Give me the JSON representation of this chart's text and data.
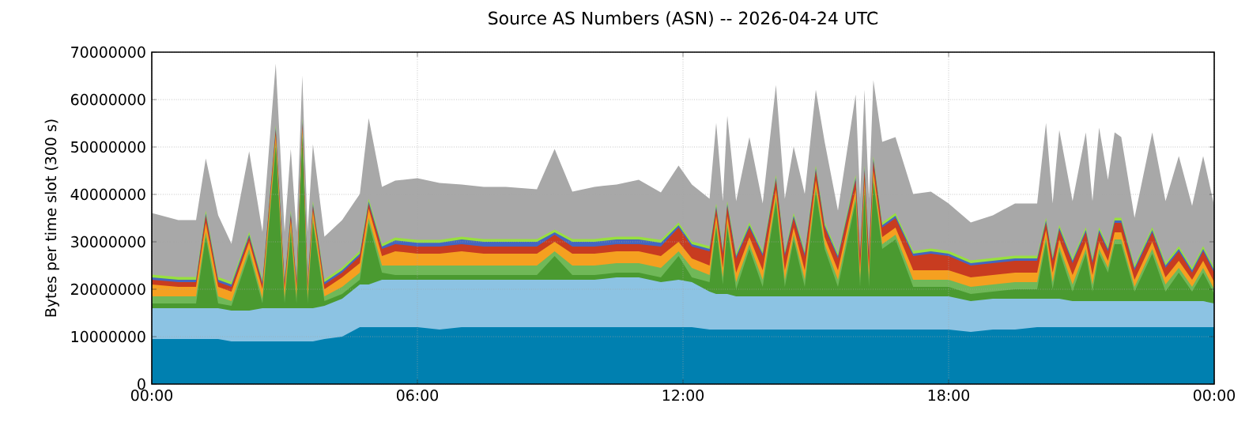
{
  "chart_data": {
    "type": "area",
    "stacked": true,
    "title": "Source AS Numbers (ASN) -- 2026-04-24 UTC",
    "ylabel": "Bytes per time slot (300 s)",
    "x": [
      0,
      0.6,
      1,
      1.22,
      1.5,
      1.8,
      2.2,
      2.5,
      2.8,
      3,
      3.14,
      3.27,
      3.4,
      3.52,
      3.64,
      3.9,
      4.3,
      4.7,
      4.9,
      5.2,
      5.5,
      6,
      6.5,
      7,
      7.5,
      8,
      8.7,
      9.1,
      9.5,
      10,
      10.5,
      11,
      11.5,
      11.9,
      12.2,
      12.6,
      12.75,
      12.9,
      13,
      13.2,
      13.5,
      13.8,
      14.1,
      14.3,
      14.5,
      14.75,
      15,
      15.2,
      15.5,
      15.9,
      16,
      16.1,
      16.2,
      16.3,
      16.5,
      16.8,
      17.2,
      17.6,
      18,
      18.5,
      19,
      19.5,
      20,
      20.2,
      20.35,
      20.5,
      20.8,
      21.1,
      21.25,
      21.4,
      21.6,
      21.75,
      21.9,
      22.2,
      22.6,
      22.9,
      23.2,
      23.5,
      23.75,
      24
    ],
    "xlim": [
      0,
      24
    ],
    "xticks": [
      {
        "value": 0,
        "label": "00:00"
      },
      {
        "value": 6,
        "label": "06:00"
      },
      {
        "value": 12,
        "label": "12:00"
      },
      {
        "value": 18,
        "label": "18:00"
      },
      {
        "value": 24,
        "label": "00:00"
      }
    ],
    "ylim": [
      0,
      70000000
    ],
    "yticks": [
      0,
      10000000,
      20000000,
      30000000,
      40000000,
      50000000,
      60000000,
      70000000
    ],
    "grid": true,
    "series": [
      {
        "color": "#0080b0",
        "values": [
          9500000,
          9500000,
          9500000,
          9500000,
          9500000,
          9000000,
          9000000,
          9000000,
          9000000,
          9000000,
          9000000,
          9000000,
          9000000,
          9000000,
          9000000,
          9500000,
          10000000,
          12000000,
          12000000,
          12000000,
          12000000,
          12000000,
          11500000,
          12000000,
          12000000,
          12000000,
          12000000,
          12000000,
          12000000,
          12000000,
          12000000,
          12000000,
          12000000,
          12000000,
          12000000,
          11500000,
          11500000,
          11500000,
          11500000,
          11500000,
          11500000,
          11500000,
          11500000,
          11500000,
          11500000,
          11500000,
          11500000,
          11500000,
          11500000,
          11500000,
          11500000,
          11500000,
          11500000,
          11500000,
          11500000,
          11500000,
          11500000,
          11500000,
          11500000,
          11000000,
          11500000,
          11500000,
          12000000,
          12000000,
          12000000,
          12000000,
          12000000,
          12000000,
          12000000,
          12000000,
          12000000,
          12000000,
          12000000,
          12000000,
          12000000,
          12000000,
          12000000,
          12000000,
          12000000,
          12000000
        ]
      },
      {
        "color": "#8cc3e3",
        "values": [
          6500000,
          6500000,
          6500000,
          6500000,
          6500000,
          6500000,
          6500000,
          7000000,
          7000000,
          7000000,
          7000000,
          7000000,
          7000000,
          7000000,
          7000000,
          7000000,
          8000000,
          9000000,
          9000000,
          10000000,
          10000000,
          10000000,
          10500000,
          10000000,
          10000000,
          10000000,
          10000000,
          10000000,
          10000000,
          10000000,
          10500000,
          10500000,
          9500000,
          10000000,
          9500000,
          8000000,
          7500000,
          7500000,
          7500000,
          7000000,
          7000000,
          7000000,
          7000000,
          7000000,
          7000000,
          7000000,
          7000000,
          7000000,
          7000000,
          7000000,
          7000000,
          7000000,
          7000000,
          7000000,
          7000000,
          7000000,
          7000000,
          7000000,
          7000000,
          6500000,
          6500000,
          6500000,
          6000000,
          6000000,
          6000000,
          6000000,
          5500000,
          5500000,
          5500000,
          5500000,
          5500000,
          5500000,
          5500000,
          5500000,
          5500000,
          5500000,
          5500000,
          5500000,
          5500000,
          5000000
        ]
      },
      {
        "color": "#4a9a30",
        "values": [
          1000000,
          1000000,
          1000000,
          15000000,
          1000000,
          1000000,
          12000000,
          1000000,
          34000000,
          1000000,
          16000000,
          1000000,
          36000000,
          1000000,
          18000000,
          1000000,
          1000000,
          1000000,
          13000000,
          1500000,
          1000000,
          1000000,
          1000000,
          1000000,
          1000000,
          1000000,
          1000000,
          5000000,
          1000000,
          1000000,
          1000000,
          1000000,
          1000000,
          5000000,
          1000000,
          2000000,
          14000000,
          2000000,
          14000000,
          1500000,
          10000000,
          2000000,
          20000000,
          2000000,
          12000000,
          2000000,
          22000000,
          10000000,
          2000000,
          20000000,
          2000000,
          22000000,
          2000000,
          24000000,
          10000000,
          12000000,
          2000000,
          2000000,
          2000000,
          1500000,
          1500000,
          2000000,
          2000000,
          12000000,
          2000000,
          10000000,
          2000000,
          10000000,
          2000000,
          10000000,
          6000000,
          12000000,
          12000000,
          2000000,
          10000000,
          2000000,
          6000000,
          2000000,
          6000000,
          2000000
        ]
      },
      {
        "color": "#70b858",
        "values": [
          1500000,
          1500000,
          1500000,
          1000000,
          1500000,
          1000000,
          1000000,
          1000000,
          1000000,
          1000000,
          1000000,
          1000000,
          1000000,
          1000000,
          1000000,
          1000000,
          1500000,
          1500000,
          1000000,
          1500000,
          2000000,
          2000000,
          2000000,
          2000000,
          2000000,
          2000000,
          2000000,
          1000000,
          2000000,
          2000000,
          2000000,
          2000000,
          2000000,
          1000000,
          2000000,
          1500000,
          1000000,
          1500000,
          1000000,
          1500000,
          1000000,
          1500000,
          1000000,
          1500000,
          1000000,
          1500000,
          1000000,
          1000000,
          1500000,
          1000000,
          1500000,
          1000000,
          1500000,
          1000000,
          1000000,
          1000000,
          1500000,
          1500000,
          1500000,
          1500000,
          1500000,
          1500000,
          1500000,
          1000000,
          1500000,
          1000000,
          1500000,
          1000000,
          1500000,
          1000000,
          1000000,
          1000000,
          1000000,
          1000000,
          1000000,
          1500000,
          1000000,
          1000000,
          1000000,
          1000000
        ]
      },
      {
        "color": "#f5a020",
        "values": [
          2500000,
          2000000,
          2000000,
          2000000,
          2000000,
          2000000,
          1500000,
          2000000,
          1500000,
          2000000,
          1500000,
          2000000,
          1000000,
          2000000,
          1500000,
          1500000,
          2000000,
          2000000,
          2000000,
          2000000,
          3000000,
          2500000,
          2500000,
          3000000,
          2500000,
          2500000,
          2500000,
          2000000,
          2500000,
          2500000,
          2500000,
          2500000,
          2500000,
          2000000,
          2000000,
          2000000,
          1500000,
          2000000,
          1500000,
          2000000,
          1500000,
          2000000,
          1500000,
          2000000,
          1500000,
          2000000,
          1500000,
          1500000,
          2000000,
          1500000,
          2000000,
          1500000,
          2000000,
          1500000,
          1500000,
          1500000,
          2000000,
          2000000,
          2000000,
          2000000,
          2000000,
          2000000,
          2000000,
          1500000,
          2000000,
          1500000,
          2000000,
          1500000,
          2000000,
          1500000,
          1500000,
          1500000,
          1500000,
          1500000,
          1500000,
          1500000,
          1500000,
          1500000,
          1500000,
          1500000
        ]
      },
      {
        "color": "#c83c20",
        "values": [
          1000000,
          1000000,
          1000000,
          1500000,
          1000000,
          1000000,
          1000000,
          1000000,
          1000000,
          1000000,
          1000000,
          1000000,
          1000000,
          1000000,
          1000000,
          1000000,
          1000000,
          1500000,
          1000000,
          1500000,
          1500000,
          1500000,
          1500000,
          1500000,
          1500000,
          1500000,
          1500000,
          1500000,
          1500000,
          1500000,
          1500000,
          1500000,
          2000000,
          3000000,
          2500000,
          3000000,
          1500000,
          3000000,
          2000000,
          3000000,
          2000000,
          3000000,
          2000000,
          3000000,
          2000000,
          3000000,
          2000000,
          2000000,
          2500000,
          2000000,
          3000000,
          2000000,
          3000000,
          2000000,
          2000000,
          2000000,
          3000000,
          3500000,
          3000000,
          2500000,
          2500000,
          2500000,
          2500000,
          1500000,
          2500000,
          2000000,
          2500000,
          2000000,
          2500000,
          2000000,
          2000000,
          2000000,
          2000000,
          2000000,
          2000000,
          2000000,
          2000000,
          1500000,
          2000000,
          2000000
        ]
      },
      {
        "color": "#4466c0",
        "values": [
          500000,
          500000,
          500000,
          500000,
          500000,
          500000,
          500000,
          500000,
          500000,
          500000,
          500000,
          500000,
          500000,
          500000,
          500000,
          500000,
          500000,
          500000,
          500000,
          500000,
          800000,
          800000,
          800000,
          1000000,
          1000000,
          1000000,
          1000000,
          500000,
          1000000,
          1000000,
          1000000,
          1000000,
          800000,
          500000,
          500000,
          500000,
          500000,
          500000,
          500000,
          500000,
          500000,
          500000,
          500000,
          500000,
          500000,
          500000,
          500000,
          500000,
          500000,
          500000,
          500000,
          500000,
          500000,
          500000,
          500000,
          500000,
          500000,
          500000,
          500000,
          500000,
          500000,
          500000,
          500000,
          500000,
          500000,
          500000,
          500000,
          500000,
          500000,
          500000,
          500000,
          500000,
          500000,
          500000,
          500000,
          500000,
          500000,
          500000,
          500000,
          500000
        ]
      },
      {
        "color": "#98e040",
        "values": [
          600000,
          600000,
          600000,
          600000,
          600000,
          600000,
          600000,
          600000,
          600000,
          600000,
          600000,
          600000,
          600000,
          600000,
          600000,
          600000,
          600000,
          600000,
          600000,
          600000,
          600000,
          600000,
          600000,
          600000,
          600000,
          600000,
          600000,
          600000,
          600000,
          600000,
          600000,
          600000,
          600000,
          600000,
          600000,
          600000,
          600000,
          600000,
          600000,
          600000,
          600000,
          600000,
          600000,
          600000,
          600000,
          600000,
          600000,
          600000,
          600000,
          600000,
          600000,
          600000,
          600000,
          600000,
          600000,
          600000,
          600000,
          600000,
          600000,
          600000,
          600000,
          600000,
          600000,
          600000,
          600000,
          600000,
          600000,
          600000,
          600000,
          600000,
          600000,
          600000,
          600000,
          600000,
          600000,
          600000,
          600000,
          600000,
          600000,
          600000
        ]
      },
      {
        "color": "#a8a8a8",
        "values": [
          13000000,
          12000000,
          12000000,
          11000000,
          13000000,
          8000000,
          17000000,
          10000000,
          13000000,
          10000000,
          13000000,
          10000000,
          9000000,
          10000000,
          12000000,
          9000000,
          10000000,
          12000000,
          17000000,
          12000000,
          12000000,
          13000000,
          12000000,
          11000000,
          11000000,
          11000000,
          10500000,
          17000000,
          10000000,
          11000000,
          11000000,
          12000000,
          10000000,
          12000000,
          12000000,
          10000000,
          17000000,
          10000000,
          18000000,
          11000000,
          18000000,
          10000000,
          19000000,
          11000000,
          14000000,
          12000000,
          16000000,
          17000000,
          9000000,
          17000000,
          11000000,
          16000000,
          11000000,
          16000000,
          17000000,
          16000000,
          12000000,
          12000000,
          10000000,
          8000000,
          9000000,
          11000000,
          11000000,
          20000000,
          11000000,
          20000000,
          12000000,
          20000000,
          12000000,
          21000000,
          14000000,
          18000000,
          17000000,
          10000000,
          20000000,
          13000000,
          19000000,
          13000000,
          19000000,
          13000000
        ]
      }
    ]
  }
}
